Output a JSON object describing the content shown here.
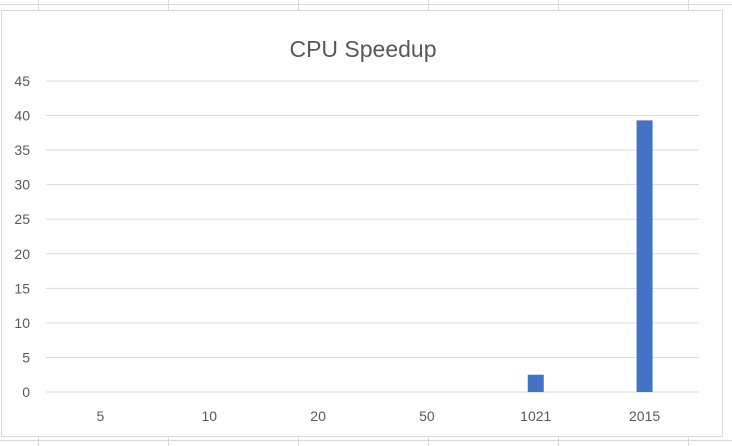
{
  "chart_data": {
    "type": "bar",
    "title": "CPU Speedup",
    "categories": [
      "5",
      "10",
      "20",
      "50",
      "1021",
      "2015"
    ],
    "values": [
      0,
      0,
      0,
      0,
      2.5,
      39.3
    ],
    "xlabel": "",
    "ylabel": "",
    "ylim": [
      0,
      45
    ],
    "yticks": [
      0,
      5,
      10,
      15,
      20,
      25,
      30,
      35,
      40,
      45
    ],
    "grid": true,
    "legend": "none",
    "bar_color": "#4472c4",
    "grid_color": "#d9d9d9",
    "text_color": "#595959"
  }
}
